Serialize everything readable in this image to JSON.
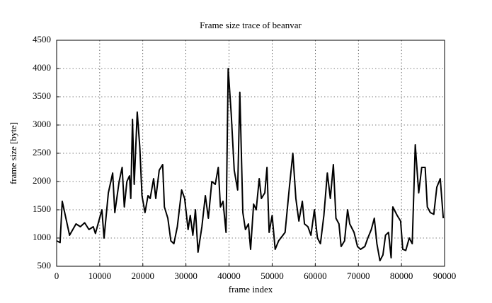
{
  "chart_data": {
    "type": "line",
    "title": "Frame size trace of beanvar",
    "x_label": "frame index",
    "y_label": "frame size [byte]",
    "x": [
      0,
      800,
      1300,
      3000,
      4500,
      5500,
      6500,
      7500,
      8500,
      9000,
      10500,
      11000,
      12000,
      13000,
      13500,
      14500,
      15200,
      15700,
      16300,
      16900,
      17200,
      17600,
      18000,
      18700,
      19300,
      19800,
      20500,
      21200,
      21700,
      22500,
      23000,
      23800,
      24600,
      25000,
      25800,
      26500,
      27200,
      28000,
      29000,
      29700,
      30500,
      31000,
      31600,
      32200,
      32800,
      33700,
      34500,
      35200,
      36000,
      36800,
      37500,
      38000,
      38600,
      39300,
      39800,
      40500,
      41200,
      42000,
      42500,
      43200,
      43800,
      44500,
      45000,
      45700,
      46300,
      47000,
      47500,
      48300,
      48800,
      49300,
      50000,
      50700,
      51500,
      52500,
      53000,
      54000,
      54800,
      55500,
      56200,
      57000,
      57500,
      58300,
      59000,
      59800,
      60500,
      61200,
      62000,
      62800,
      63500,
      64200,
      64800,
      65500,
      66000,
      66800,
      67500,
      68000,
      69000,
      69800,
      70500,
      71500,
      72200,
      73000,
      73700,
      74300,
      75000,
      75700,
      76300,
      77000,
      77600,
      78000,
      79000,
      79800,
      80300,
      81000,
      81800,
      82500,
      83200,
      84000,
      84700,
      85500,
      86000,
      86700,
      87500,
      88200,
      89000,
      89700
    ],
    "values": [
      950,
      920,
      1650,
      1050,
      1250,
      1200,
      1270,
      1150,
      1200,
      1080,
      1500,
      1000,
      1800,
      2150,
      1450,
      2000,
      2250,
      1550,
      2000,
      2100,
      1700,
      3100,
      1950,
      3230,
      2600,
      1750,
      1450,
      1750,
      1700,
      2050,
      1700,
      2200,
      2300,
      1550,
      1350,
      950,
      900,
      1200,
      1850,
      1700,
      1150,
      1400,
      1050,
      1500,
      750,
      1200,
      1750,
      1350,
      2000,
      1950,
      2250,
      1550,
      1650,
      1100,
      4000,
      3200,
      2200,
      1850,
      3580,
      1450,
      1150,
      1250,
      800,
      1600,
      1500,
      2050,
      1700,
      1800,
      2250,
      1100,
      1400,
      800,
      950,
      1050,
      1100,
      1900,
      2500,
      1700,
      1300,
      1650,
      1250,
      1200,
      1050,
      1500,
      1000,
      900,
      1400,
      2150,
      1700,
      2300,
      1350,
      1250,
      850,
      950,
      1500,
      1250,
      1100,
      850,
      800,
      850,
      1000,
      1150,
      1350,
      900,
      600,
      700,
      1050,
      1100,
      650,
      1550,
      1400,
      1300,
      800,
      780,
      1000,
      900,
      2650,
      1800,
      2250,
      2250,
      1550,
      1450,
      1420,
      1900,
      2050,
      1350
    ],
    "color": "#000000",
    "xlim": [
      0,
      90000
    ],
    "xticks": [
      0,
      10000,
      20000,
      30000,
      40000,
      50000,
      60000,
      70000,
      80000,
      90000
    ],
    "ylim": [
      500,
      4500
    ],
    "yticks": [
      500,
      1000,
      1500,
      2000,
      2500,
      3000,
      3500,
      4000,
      4500
    ],
    "grid": true
  }
}
